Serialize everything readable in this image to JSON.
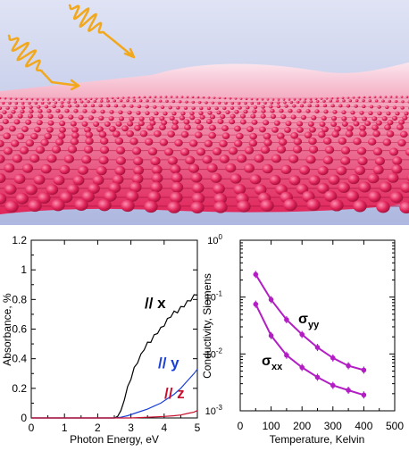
{
  "illustration": {
    "subject": "graphene-like lattice with incoming light",
    "sheet_color": "#e0245a",
    "sky_color": "#b9c2e6",
    "wave_color": "#f2a81d"
  },
  "chart_data": [
    {
      "type": "line",
      "xlabel": "Photon Energy, eV",
      "ylabel": "Absorbance, %",
      "xlim": [
        0,
        5
      ],
      "ylim": [
        0,
        1.2
      ],
      "xticks": [
        "0",
        "1",
        "2",
        "3",
        "4",
        "5"
      ],
      "yticks": [
        "0",
        "0.2",
        "0.4",
        "0.6",
        "0.8",
        "1",
        "1.2"
      ],
      "grid": false,
      "series": [
        {
          "name": "// x",
          "color": "#000000",
          "x": [
            0,
            2.5,
            2.6,
            2.7,
            2.8,
            2.9,
            3.0,
            3.1,
            3.2,
            3.3,
            3.4,
            3.5,
            3.6,
            3.7,
            3.8,
            3.9,
            4.0,
            4.1,
            4.2,
            4.3,
            4.4,
            4.5,
            4.6,
            4.7,
            4.8,
            4.9,
            5.0
          ],
          "y": [
            0,
            0,
            0.01,
            0.05,
            0.12,
            0.2,
            0.27,
            0.33,
            0.38,
            0.42,
            0.47,
            0.5,
            0.52,
            0.55,
            0.58,
            0.6,
            0.63,
            0.66,
            0.69,
            0.71,
            0.72,
            0.74,
            0.76,
            0.78,
            0.8,
            0.82,
            0.84
          ]
        },
        {
          "name": "// y",
          "color": "#1a3fd6",
          "x": [
            0,
            2.5,
            2.7,
            2.9,
            3.1,
            3.3,
            3.5,
            3.7,
            3.9,
            4.1,
            4.3,
            4.5,
            4.7,
            4.9,
            5.0
          ],
          "y": [
            0,
            0,
            0.005,
            0.015,
            0.03,
            0.045,
            0.06,
            0.08,
            0.1,
            0.13,
            0.16,
            0.2,
            0.25,
            0.3,
            0.33
          ]
        },
        {
          "name": "// z",
          "color": "#c8102e",
          "x": [
            0,
            3.0,
            3.5,
            4.0,
            4.3,
            4.5,
            4.7,
            4.9,
            5.0
          ],
          "y": [
            0,
            0,
            0.005,
            0.01,
            0.015,
            0.02,
            0.03,
            0.04,
            0.05
          ]
        }
      ]
    },
    {
      "type": "line",
      "xlabel": "Temperature, Kelvin",
      "ylabel": "Conductivity, Siemens",
      "xlim": [
        0,
        500
      ],
      "ylim": [
        0.001,
        1
      ],
      "yscale": "log",
      "xticks": [
        "0",
        "100",
        "200",
        "300",
        "400",
        "500"
      ],
      "grid": false,
      "series": [
        {
          "name": "σyy",
          "color": "#b21ec4",
          "x": [
            50,
            100,
            150,
            200,
            250,
            300,
            350,
            400
          ],
          "y": [
            0.25,
            0.09,
            0.04,
            0.022,
            0.013,
            0.0085,
            0.0062,
            0.0052
          ]
        },
        {
          "name": "σxx",
          "color": "#b21ec4",
          "x": [
            50,
            100,
            150,
            200,
            250,
            300,
            350,
            400
          ],
          "y": [
            0.075,
            0.021,
            0.0095,
            0.0058,
            0.0039,
            0.0028,
            0.0023,
            0.0019
          ]
        }
      ]
    }
  ]
}
